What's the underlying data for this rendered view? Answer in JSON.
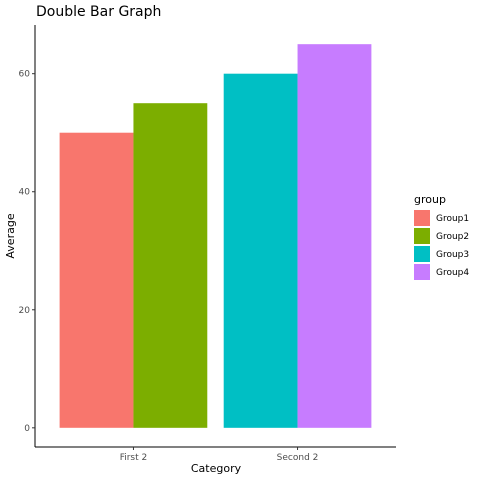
{
  "chart_data": {
    "type": "bar",
    "title": "Double Bar Graph",
    "xlabel": "Category",
    "ylabel": "Average",
    "categories": [
      "First 2",
      "Second 2"
    ],
    "series": [
      {
        "name": "Group1",
        "category": "First 2",
        "value": 50,
        "color": "#F8766D"
      },
      {
        "name": "Group2",
        "category": "First 2",
        "value": 55,
        "color": "#7CAE00"
      },
      {
        "name": "Group3",
        "category": "Second 2",
        "value": 60,
        "color": "#00BFC4"
      },
      {
        "name": "Group4",
        "category": "Second 2",
        "value": 65,
        "color": "#C77CFF"
      }
    ],
    "yticks": [
      0,
      20,
      40,
      60
    ],
    "ylim": [
      -3.25,
      68.25
    ],
    "grid": false,
    "legend": {
      "title": "group",
      "placement": "right"
    }
  }
}
